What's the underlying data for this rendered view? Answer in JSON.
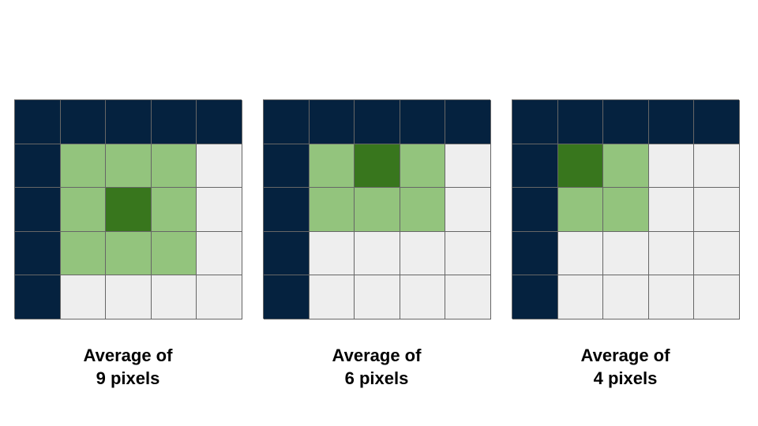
{
  "colors": {
    "edge": "#05223f",
    "neighbor": "#93c47d",
    "center": "#38761d",
    "empty": "#eeeeee",
    "line": "#666666"
  },
  "panels": [
    {
      "caption_line1": "Average of",
      "caption_line2": "9 pixels",
      "cells": [
        [
          "edge",
          "edge",
          "edge",
          "edge",
          "edge"
        ],
        [
          "edge",
          "neighbor",
          "neighbor",
          "neighbor",
          "empty"
        ],
        [
          "edge",
          "neighbor",
          "center",
          "neighbor",
          "empty"
        ],
        [
          "edge",
          "neighbor",
          "neighbor",
          "neighbor",
          "empty"
        ],
        [
          "edge",
          "empty",
          "empty",
          "empty",
          "empty"
        ]
      ]
    },
    {
      "caption_line1": "Average of",
      "caption_line2": "6 pixels",
      "cells": [
        [
          "edge",
          "edge",
          "edge",
          "edge",
          "edge"
        ],
        [
          "edge",
          "neighbor",
          "center",
          "neighbor",
          "empty"
        ],
        [
          "edge",
          "neighbor",
          "neighbor",
          "neighbor",
          "empty"
        ],
        [
          "edge",
          "empty",
          "empty",
          "empty",
          "empty"
        ],
        [
          "edge",
          "empty",
          "empty",
          "empty",
          "empty"
        ]
      ]
    },
    {
      "caption_line1": "Average of",
      "caption_line2": "4 pixels",
      "cells": [
        [
          "edge",
          "edge",
          "edge",
          "edge",
          "edge"
        ],
        [
          "edge",
          "center",
          "neighbor",
          "empty",
          "empty"
        ],
        [
          "edge",
          "neighbor",
          "neighbor",
          "empty",
          "empty"
        ],
        [
          "edge",
          "empty",
          "empty",
          "empty",
          "empty"
        ],
        [
          "edge",
          "empty",
          "empty",
          "empty",
          "empty"
        ]
      ]
    }
  ]
}
